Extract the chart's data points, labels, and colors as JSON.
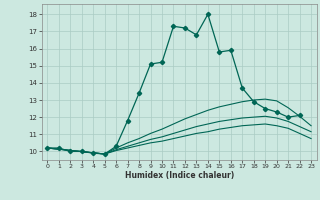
{
  "xlabel": "Humidex (Indice chaleur)",
  "bg_color": "#cce8e0",
  "grid_color": "#aaccc4",
  "line_color": "#006655",
  "xlim": [
    -0.5,
    23.5
  ],
  "ylim": [
    9.5,
    18.6
  ],
  "xticks": [
    0,
    1,
    2,
    3,
    4,
    5,
    6,
    7,
    8,
    9,
    10,
    11,
    12,
    13,
    14,
    15,
    16,
    17,
    18,
    19,
    20,
    21,
    22,
    23
  ],
  "yticks": [
    10,
    11,
    12,
    13,
    14,
    15,
    16,
    17,
    18
  ],
  "main_x": [
    0,
    1,
    2,
    3,
    4,
    5,
    6,
    7,
    8,
    9,
    10,
    11,
    12,
    13,
    14,
    15,
    16,
    17,
    18,
    19,
    20,
    21,
    22
  ],
  "main_y": [
    10.2,
    10.2,
    10.0,
    10.0,
    9.9,
    9.85,
    10.3,
    11.8,
    13.4,
    15.1,
    15.2,
    17.3,
    17.2,
    16.8,
    18.0,
    15.8,
    15.9,
    13.7,
    12.9,
    12.5,
    12.3,
    12.0,
    12.1
  ],
  "line2_x": [
    0,
    5,
    6,
    7,
    8,
    9,
    10,
    11,
    12,
    13,
    14,
    15,
    16,
    17,
    18,
    19,
    20,
    21,
    22,
    23
  ],
  "line2_y": [
    10.2,
    9.85,
    10.2,
    10.5,
    10.75,
    11.05,
    11.3,
    11.6,
    11.9,
    12.15,
    12.4,
    12.6,
    12.75,
    12.9,
    13.0,
    13.05,
    12.95,
    12.55,
    12.05,
    11.5
  ],
  "line3_x": [
    0,
    5,
    6,
    7,
    8,
    9,
    10,
    11,
    12,
    13,
    14,
    15,
    16,
    17,
    18,
    19,
    20,
    21,
    22,
    23
  ],
  "line3_y": [
    10.2,
    9.85,
    10.1,
    10.3,
    10.5,
    10.7,
    10.85,
    11.05,
    11.25,
    11.45,
    11.6,
    11.75,
    11.85,
    11.95,
    12.0,
    12.05,
    11.95,
    11.75,
    11.45,
    11.15
  ],
  "line4_x": [
    0,
    5,
    6,
    7,
    8,
    9,
    10,
    11,
    12,
    13,
    14,
    15,
    16,
    17,
    18,
    19,
    20,
    21,
    22,
    23
  ],
  "line4_y": [
    10.2,
    9.85,
    10.05,
    10.2,
    10.35,
    10.5,
    10.6,
    10.75,
    10.9,
    11.05,
    11.15,
    11.3,
    11.4,
    11.5,
    11.55,
    11.6,
    11.5,
    11.35,
    11.05,
    10.75
  ]
}
